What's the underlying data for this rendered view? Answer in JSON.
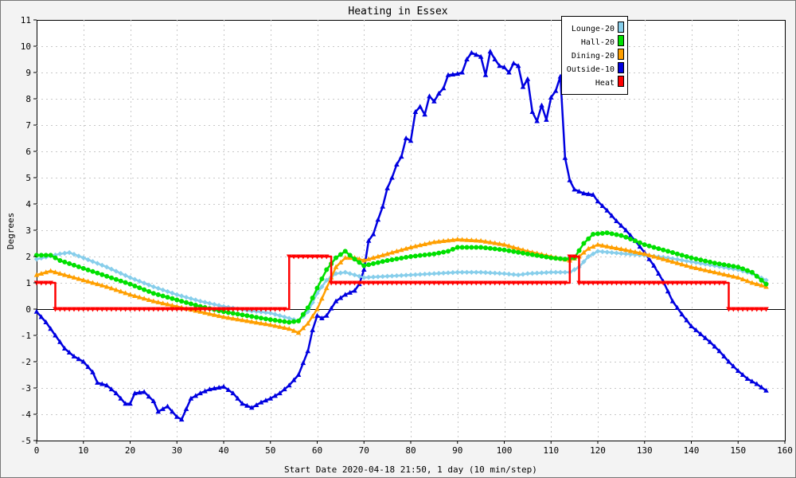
{
  "chart_data": {
    "type": "line",
    "title": "Heating in Essex",
    "xlabel": "Start Date 2020-04-18 21:50, 1 day (10 min/step)",
    "ylabel": "Degrees",
    "xlim": [
      0,
      160
    ],
    "ylim": [
      -5,
      11
    ],
    "x_ticks": [
      0,
      10,
      20,
      30,
      40,
      50,
      60,
      70,
      80,
      90,
      100,
      110,
      120,
      130,
      140,
      150,
      160
    ],
    "y_ticks": [
      -5,
      -4,
      -3,
      -2,
      -1,
      0,
      1,
      2,
      3,
      4,
      5,
      6,
      7,
      8,
      9,
      10,
      11
    ],
    "grid": true,
    "legend_position": "top-right",
    "series": [
      {
        "name": "Lounge-20",
        "color": "#87ceeb",
        "marker": "diamond",
        "points": [
          [
            0,
            1.9
          ],
          [
            5,
            2.1
          ],
          [
            7,
            2.15
          ],
          [
            10,
            1.95
          ],
          [
            15,
            1.6
          ],
          [
            20,
            1.2
          ],
          [
            25,
            0.85
          ],
          [
            30,
            0.55
          ],
          [
            35,
            0.3
          ],
          [
            40,
            0.1
          ],
          [
            45,
            -0.05
          ],
          [
            50,
            -0.15
          ],
          [
            54,
            -0.35
          ],
          [
            56,
            -0.45
          ],
          [
            58,
            -0.1
          ],
          [
            60,
            0.6
          ],
          [
            62,
            1.1
          ],
          [
            64,
            1.35
          ],
          [
            66,
            1.4
          ],
          [
            68,
            1.3
          ],
          [
            70,
            1.2
          ],
          [
            75,
            1.25
          ],
          [
            80,
            1.3
          ],
          [
            85,
            1.35
          ],
          [
            90,
            1.4
          ],
          [
            95,
            1.4
          ],
          [
            100,
            1.35
          ],
          [
            103,
            1.3
          ],
          [
            105,
            1.35
          ],
          [
            110,
            1.4
          ],
          [
            114,
            1.4
          ],
          [
            116,
            1.6
          ],
          [
            118,
            2.0
          ],
          [
            120,
            2.2
          ],
          [
            123,
            2.15
          ],
          [
            126,
            2.1
          ],
          [
            130,
            2.05
          ],
          [
            135,
            1.95
          ],
          [
            140,
            1.8
          ],
          [
            145,
            1.65
          ],
          [
            150,
            1.5
          ],
          [
            153,
            1.35
          ],
          [
            156,
            1.1
          ]
        ]
      },
      {
        "name": "Hall-20",
        "color": "#00e000",
        "marker": "circle",
        "points": [
          [
            0,
            2.05
          ],
          [
            3,
            2.05
          ],
          [
            5,
            1.85
          ],
          [
            10,
            1.55
          ],
          [
            15,
            1.25
          ],
          [
            20,
            0.95
          ],
          [
            25,
            0.6
          ],
          [
            30,
            0.35
          ],
          [
            35,
            0.1
          ],
          [
            40,
            -0.1
          ],
          [
            45,
            -0.25
          ],
          [
            50,
            -0.4
          ],
          [
            54,
            -0.5
          ],
          [
            56,
            -0.45
          ],
          [
            58,
            0.05
          ],
          [
            60,
            0.8
          ],
          [
            62,
            1.5
          ],
          [
            64,
            1.95
          ],
          [
            66,
            2.2
          ],
          [
            68,
            1.9
          ],
          [
            70,
            1.65
          ],
          [
            75,
            1.85
          ],
          [
            80,
            2.0
          ],
          [
            85,
            2.1
          ],
          [
            88,
            2.2
          ],
          [
            90,
            2.35
          ],
          [
            95,
            2.35
          ],
          [
            100,
            2.25
          ],
          [
            105,
            2.1
          ],
          [
            110,
            1.95
          ],
          [
            113,
            1.9
          ],
          [
            115,
            1.95
          ],
          [
            117,
            2.5
          ],
          [
            119,
            2.85
          ],
          [
            122,
            2.9
          ],
          [
            125,
            2.8
          ],
          [
            128,
            2.6
          ],
          [
            130,
            2.45
          ],
          [
            135,
            2.2
          ],
          [
            140,
            1.95
          ],
          [
            145,
            1.75
          ],
          [
            150,
            1.6
          ],
          [
            153,
            1.4
          ],
          [
            156,
            0.95
          ]
        ]
      },
      {
        "name": "Dining-20",
        "color": "#ff9f00",
        "marker": "triangle",
        "points": [
          [
            0,
            1.3
          ],
          [
            3,
            1.45
          ],
          [
            5,
            1.35
          ],
          [
            10,
            1.1
          ],
          [
            15,
            0.85
          ],
          [
            20,
            0.55
          ],
          [
            25,
            0.3
          ],
          [
            30,
            0.1
          ],
          [
            35,
            -0.1
          ],
          [
            40,
            -0.3
          ],
          [
            45,
            -0.45
          ],
          [
            50,
            -0.6
          ],
          [
            54,
            -0.75
          ],
          [
            56,
            -0.9
          ],
          [
            58,
            -0.55
          ],
          [
            60,
            0.0
          ],
          [
            62,
            0.8
          ],
          [
            64,
            1.6
          ],
          [
            66,
            1.95
          ],
          [
            68,
            1.95
          ],
          [
            70,
            1.85
          ],
          [
            75,
            2.1
          ],
          [
            80,
            2.35
          ],
          [
            85,
            2.55
          ],
          [
            90,
            2.65
          ],
          [
            95,
            2.6
          ],
          [
            100,
            2.45
          ],
          [
            105,
            2.2
          ],
          [
            110,
            2.0
          ],
          [
            114,
            1.85
          ],
          [
            116,
            2.0
          ],
          [
            118,
            2.3
          ],
          [
            120,
            2.45
          ],
          [
            123,
            2.35
          ],
          [
            126,
            2.25
          ],
          [
            130,
            2.1
          ],
          [
            135,
            1.85
          ],
          [
            140,
            1.6
          ],
          [
            145,
            1.4
          ],
          [
            150,
            1.2
          ],
          [
            153,
            1.0
          ],
          [
            156,
            0.85
          ]
        ]
      },
      {
        "name": "Outside-10",
        "color": "#0000e0",
        "marker": "triangle",
        "points": [
          [
            0,
            -0.1
          ],
          [
            2,
            -0.5
          ],
          [
            4,
            -1.0
          ],
          [
            6,
            -1.5
          ],
          [
            8,
            -1.8
          ],
          [
            10,
            -2.0
          ],
          [
            12,
            -2.4
          ],
          [
            13,
            -2.8
          ],
          [
            15,
            -2.9
          ],
          [
            17,
            -3.2
          ],
          [
            19,
            -3.6
          ],
          [
            20,
            -3.6
          ],
          [
            21,
            -3.2
          ],
          [
            23,
            -3.15
          ],
          [
            25,
            -3.5
          ],
          [
            26,
            -3.9
          ],
          [
            28,
            -3.7
          ],
          [
            30,
            -4.1
          ],
          [
            31,
            -4.2
          ],
          [
            33,
            -3.4
          ],
          [
            35,
            -3.2
          ],
          [
            37,
            -3.05
          ],
          [
            40,
            -2.95
          ],
          [
            42,
            -3.2
          ],
          [
            44,
            -3.6
          ],
          [
            46,
            -3.75
          ],
          [
            48,
            -3.55
          ],
          [
            50,
            -3.4
          ],
          [
            52,
            -3.2
          ],
          [
            54,
            -2.9
          ],
          [
            56,
            -2.5
          ],
          [
            58,
            -1.6
          ],
          [
            59,
            -0.8
          ],
          [
            60,
            -0.25
          ],
          [
            61,
            -0.35
          ],
          [
            62,
            -0.25
          ],
          [
            64,
            0.3
          ],
          [
            66,
            0.55
          ],
          [
            68,
            0.7
          ],
          [
            69,
            0.95
          ],
          [
            70,
            1.5
          ],
          [
            71,
            2.6
          ],
          [
            72,
            2.85
          ],
          [
            73,
            3.4
          ],
          [
            74,
            3.9
          ],
          [
            75,
            4.6
          ],
          [
            76,
            5.0
          ],
          [
            77,
            5.5
          ],
          [
            78,
            5.8
          ],
          [
            79,
            6.5
          ],
          [
            80,
            6.4
          ],
          [
            81,
            7.5
          ],
          [
            82,
            7.7
          ],
          [
            83,
            7.4
          ],
          [
            84,
            8.1
          ],
          [
            85,
            7.9
          ],
          [
            86,
            8.2
          ],
          [
            87,
            8.4
          ],
          [
            88,
            8.9
          ],
          [
            90,
            8.95
          ],
          [
            91,
            9.0
          ],
          [
            92,
            9.5
          ],
          [
            93,
            9.75
          ],
          [
            95,
            9.6
          ],
          [
            96,
            8.9
          ],
          [
            97,
            9.8
          ],
          [
            98,
            9.5
          ],
          [
            99,
            9.25
          ],
          [
            100,
            9.2
          ],
          [
            101,
            9.0
          ],
          [
            102,
            9.35
          ],
          [
            103,
            9.25
          ],
          [
            104,
            8.45
          ],
          [
            105,
            8.75
          ],
          [
            106,
            7.5
          ],
          [
            107,
            7.15
          ],
          [
            108,
            7.75
          ],
          [
            109,
            7.2
          ],
          [
            110,
            8.05
          ],
          [
            111,
            8.3
          ],
          [
            112,
            8.85
          ],
          [
            113,
            5.75
          ],
          [
            114,
            4.9
          ],
          [
            115,
            4.55
          ],
          [
            117,
            4.4
          ],
          [
            119,
            4.35
          ],
          [
            120,
            4.1
          ],
          [
            122,
            3.75
          ],
          [
            124,
            3.35
          ],
          [
            126,
            3.0
          ],
          [
            128,
            2.6
          ],
          [
            130,
            2.15
          ],
          [
            132,
            1.65
          ],
          [
            134,
            1.05
          ],
          [
            136,
            0.3
          ],
          [
            138,
            -0.2
          ],
          [
            140,
            -0.65
          ],
          [
            142,
            -0.95
          ],
          [
            144,
            -1.25
          ],
          [
            146,
            -1.6
          ],
          [
            148,
            -2.0
          ],
          [
            150,
            -2.35
          ],
          [
            152,
            -2.65
          ],
          [
            154,
            -2.85
          ],
          [
            156,
            -3.1
          ]
        ]
      },
      {
        "name": "Heat",
        "color": "#ff0000",
        "marker": "triangle-down",
        "step": true,
        "points": [
          [
            0,
            1
          ],
          [
            4,
            1
          ],
          [
            4,
            0
          ],
          [
            54,
            0
          ],
          [
            54,
            2
          ],
          [
            63,
            2
          ],
          [
            63,
            1
          ],
          [
            114,
            1
          ],
          [
            114,
            2
          ],
          [
            116,
            2
          ],
          [
            116,
            1
          ],
          [
            148,
            1
          ],
          [
            148,
            0
          ],
          [
            156,
            0
          ]
        ]
      }
    ]
  }
}
